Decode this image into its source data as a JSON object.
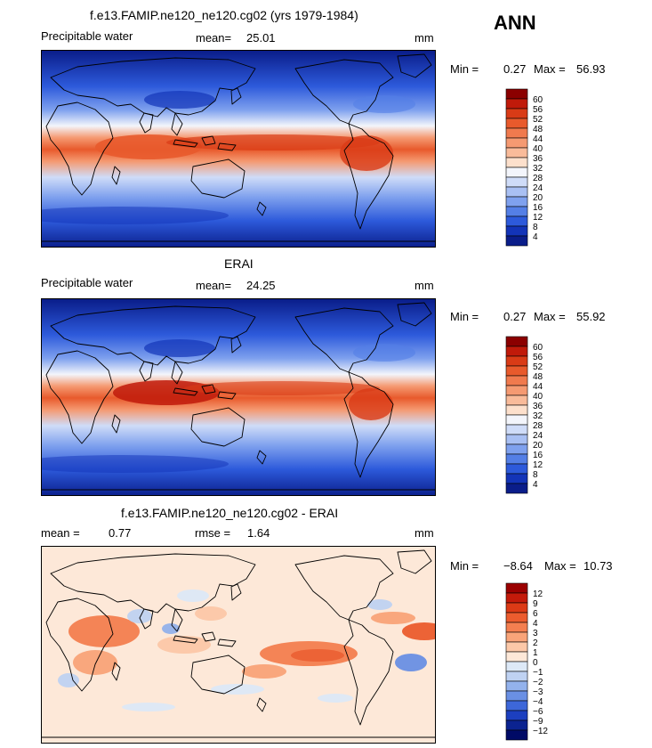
{
  "season": "ANN",
  "panels": [
    {
      "title": "f.e13.FAMIP.ne120_ne120.cg02 (yrs 1979-1984)",
      "left_label": "Precipitable water",
      "mean_label": "mean=",
      "mean_value": "25.01",
      "unit": "mm",
      "min_label": "Min =",
      "min_value": "0.27",
      "max_label": "Max =",
      "max_value": "56.93",
      "legend_labels": [
        "60",
        "56",
        "52",
        "48",
        "44",
        "40",
        "36",
        "32",
        "28",
        "24",
        "20",
        "16",
        "12",
        "8",
        "4"
      ],
      "legend_colors": [
        "#8b0000",
        "#c01a0a",
        "#d93b16",
        "#e85a2c",
        "#f07a4e",
        "#f59a72",
        "#f9bb9a",
        "#fde0cc",
        "#f3f5fb",
        "#cfdcf8",
        "#a9c0f3",
        "#7fa1ee",
        "#547fe6",
        "#2d5adb",
        "#1334b8",
        "#0a1d8a"
      ]
    },
    {
      "title": "ERAI",
      "left_label": "Precipitable water",
      "mean_label": "mean=",
      "mean_value": "24.25",
      "unit": "mm",
      "min_label": "Min =",
      "min_value": "0.27",
      "max_label": "Max =",
      "max_value": "55.92",
      "legend_labels": [
        "60",
        "56",
        "52",
        "48",
        "44",
        "40",
        "36",
        "32",
        "28",
        "24",
        "20",
        "16",
        "12",
        "8",
        "4"
      ],
      "legend_colors": [
        "#8b0000",
        "#c01a0a",
        "#d93b16",
        "#e85a2c",
        "#f07a4e",
        "#f59a72",
        "#f9bb9a",
        "#fde0cc",
        "#f3f5fb",
        "#cfdcf8",
        "#a9c0f3",
        "#7fa1ee",
        "#547fe6",
        "#2d5adb",
        "#1334b8",
        "#0a1d8a"
      ]
    },
    {
      "title": "f.e13.FAMIP.ne120_ne120.cg02 - ERAI",
      "left_label": "mean =",
      "mean_label": "",
      "mean_value": "0.77",
      "rmse_label": "rmse =",
      "rmse_value": "1.64",
      "unit": "mm",
      "min_label": "Min =",
      "min_value": "−8.64",
      "max_label": "Max =",
      "max_value": "10.73",
      "legend_labels": [
        "12",
        "9",
        "6",
        "4",
        "3",
        "2",
        "1",
        "0",
        "−1",
        "−2",
        "−3",
        "−4",
        "−6",
        "−9",
        "−12"
      ],
      "legend_colors": [
        "#9b0000",
        "#c41a0a",
        "#dc3a16",
        "#ec5c2e",
        "#f47f50",
        "#f9a479",
        "#fcc8a8",
        "#fde8d8",
        "#dde9f7",
        "#bfd2f2",
        "#93b2ec",
        "#6a90e4",
        "#3d67d9",
        "#1c3fbf",
        "#0b2390",
        "#000a66"
      ]
    }
  ]
}
